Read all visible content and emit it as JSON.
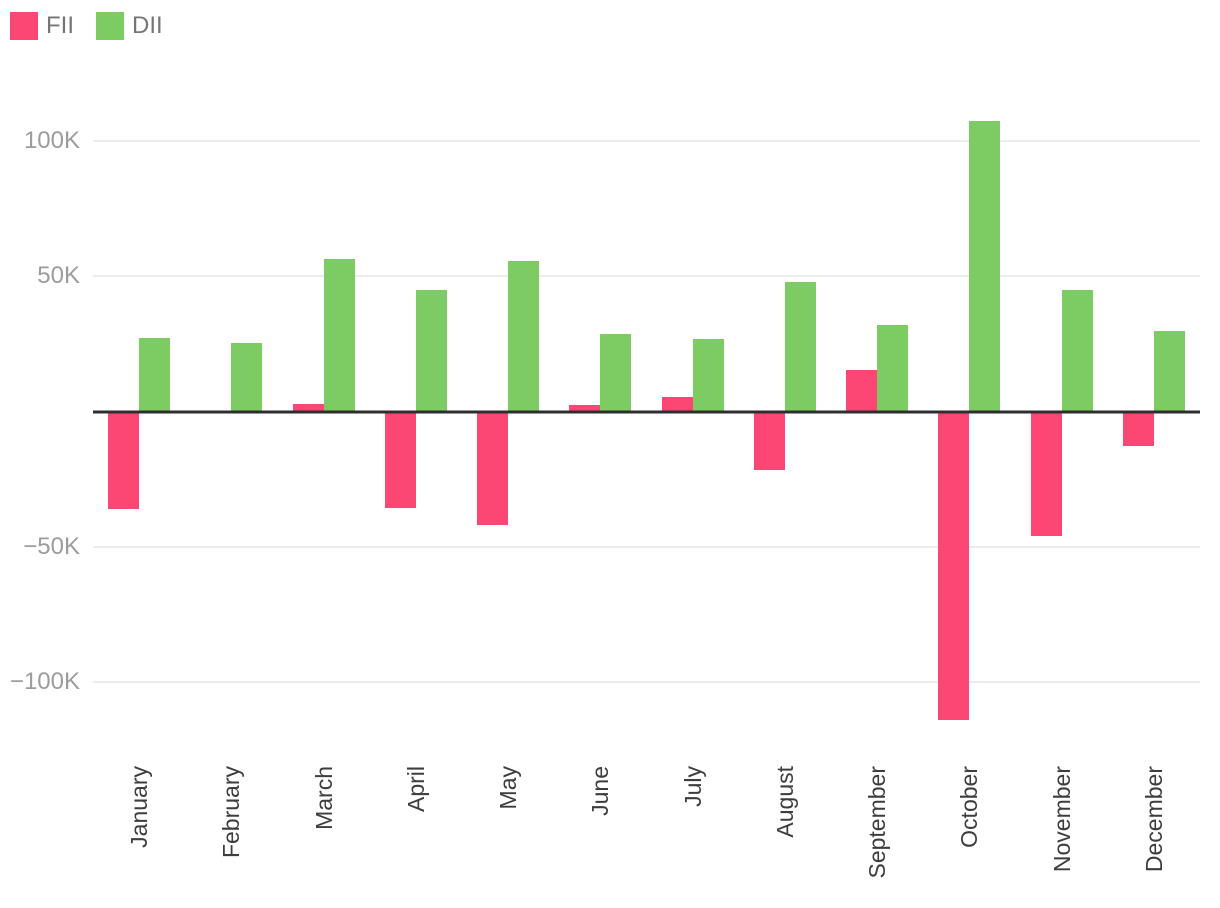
{
  "chart_data": {
    "type": "bar",
    "title": "",
    "xlabel": "",
    "ylabel": "",
    "categories": [
      "January",
      "February",
      "March",
      "April",
      "May",
      "June",
      "July",
      "August",
      "September",
      "October",
      "November",
      "December"
    ],
    "series": [
      {
        "name": "FII",
        "color": "#fc4674",
        "values": [
          -36000,
          0,
          3000,
          -35500,
          -42000,
          2300,
          5400,
          -21500,
          15400,
          -114000,
          -46000,
          -12700
        ]
      },
      {
        "name": "DII",
        "color": "#7dcb63",
        "values": [
          27400,
          25300,
          56300,
          45000,
          55700,
          28600,
          26800,
          48100,
          32100,
          107500,
          45000,
          29700
        ]
      }
    ],
    "ylim": [
      -121500,
      119000
    ],
    "yticks": [
      {
        "value": 100000,
        "label": "100K"
      },
      {
        "value": 50000,
        "label": "50K"
      },
      {
        "value": -50000,
        "label": "−50K"
      },
      {
        "value": -100000,
        "label": "−100K"
      }
    ],
    "grid": "horizontal",
    "legend_position": "top-left",
    "zero_axis": true,
    "colors": {
      "grid": "#ececec",
      "zero_line": "#2e2e2e",
      "y_tick_text": "#9c9c9c",
      "x_tick_text": "#3d3d3d",
      "legend_text": "#757575"
    }
  }
}
